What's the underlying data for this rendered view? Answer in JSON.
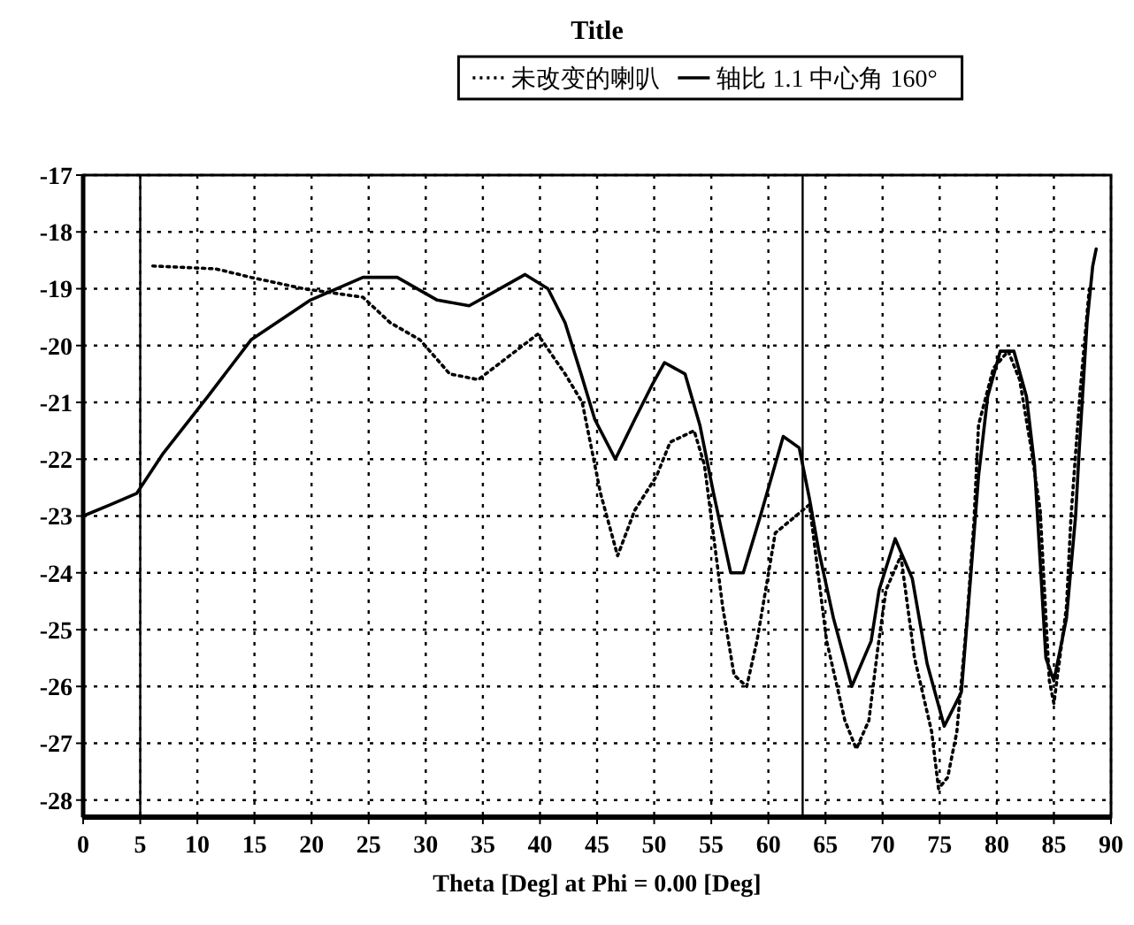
{
  "chart_data": {
    "type": "line",
    "title": "Title",
    "xlabel": "Theta [Deg] at Phi = 0.00 [Deg]",
    "xlim": [
      0,
      90
    ],
    "xticks": [
      0,
      5,
      10,
      15,
      20,
      25,
      30,
      35,
      40,
      45,
      50,
      55,
      60,
      65,
      70,
      75,
      80,
      85,
      90
    ],
    "ylim": [
      -28.3,
      -17
    ],
    "yticks": [
      -17,
      -18,
      -19,
      -20,
      -21,
      -22,
      -23,
      -24,
      -25,
      -26,
      -27,
      -28
    ],
    "grid": true,
    "legend": "top",
    "ref_lines": [
      {
        "axis": "x",
        "value": 5,
        "color": "#000000"
      },
      {
        "axis": "x",
        "value": 63,
        "color": "#000000"
      }
    ],
    "series": [
      {
        "name": "未改变的喇叭",
        "color": "#000000",
        "line_style": "dotted",
        "x": [
          6.1,
          11.6,
          14.7,
          19.3,
          24.5,
          26.9,
          29.5,
          32.1,
          34.6,
          37.2,
          39.8,
          42.2,
          43.7,
          45.3,
          46.8,
          48.3,
          50.2,
          51.4,
          53.5,
          54.4,
          56,
          57,
          58.1,
          59,
          60.1,
          60.6,
          63.6,
          65.1,
          66.7,
          67.7,
          68.8,
          69.6,
          70.3,
          71.6,
          72.8,
          74.3,
          74.9,
          75.7,
          76.5,
          77.4,
          78,
          78.4,
          79.7,
          81,
          82,
          83,
          83.8,
          84.6,
          85,
          86.1,
          86.5,
          87.3,
          88.1
        ],
        "values": [
          -18.6,
          -18.65,
          -18.8,
          -19.0,
          -19.15,
          -19.6,
          -19.9,
          -20.5,
          -20.6,
          -20.2,
          -19.8,
          -20.5,
          -21.0,
          -22.6,
          -23.7,
          -22.9,
          -22.3,
          -21.7,
          -21.5,
          -22.1,
          -24.6,
          -25.8,
          -26.0,
          -25.2,
          -23.9,
          -23.3,
          -22.8,
          -25.2,
          -26.6,
          -27.1,
          -26.6,
          -25.3,
          -24.3,
          -23.7,
          -25.5,
          -26.8,
          -27.8,
          -27.6,
          -26.8,
          -24.8,
          -23.1,
          -21.4,
          -20.4,
          -20.1,
          -20.6,
          -21.8,
          -22.9,
          -25.9,
          -26.3,
          -24.6,
          -23.0,
          -20.8,
          -19.0
        ]
      },
      {
        "name": "轴比 1.1 中心角 160°",
        "color": "#000000",
        "line_style": "solid",
        "x": [
          0,
          2.4,
          4.7,
          7.0,
          10.9,
          14.7,
          19.9,
          24.5,
          27.5,
          31,
          33.8,
          35.6,
          38.7,
          40.7,
          42.2,
          43.6,
          44.8,
          46.6,
          48.3,
          49.8,
          50.9,
          52.7,
          54,
          55.2,
          56.7,
          57.8,
          59.3,
          61.3,
          62.7,
          63.6,
          64.4,
          65.7,
          67.3,
          69,
          69.7,
          71.1,
          72.6,
          73.9,
          75.4,
          76.9,
          77.7,
          78.4,
          79.2,
          80.3,
          81.5,
          82.6,
          83.3,
          84.3,
          85,
          86.1,
          86.9,
          87.2,
          87.9,
          88.4,
          88.7
        ],
        "values": [
          -23.0,
          -22.8,
          -22.6,
          -21.9,
          -20.9,
          -19.9,
          -19.2,
          -18.8,
          -18.8,
          -19.2,
          -19.3,
          -19.1,
          -18.75,
          -19.0,
          -19.6,
          -20.5,
          -21.3,
          -22.0,
          -21.3,
          -20.7,
          -20.3,
          -20.5,
          -21.4,
          -22.6,
          -24.0,
          -24.0,
          -23.0,
          -21.6,
          -21.8,
          -22.7,
          -23.6,
          -24.8,
          -26.0,
          -25.2,
          -24.3,
          -23.4,
          -24.1,
          -25.6,
          -26.7,
          -26.1,
          -24.1,
          -22.3,
          -20.9,
          -20.1,
          -20.1,
          -20.9,
          -22.1,
          -25.5,
          -25.9,
          -24.8,
          -23.0,
          -21.9,
          -19.6,
          -18.6,
          -18.3
        ]
      }
    ]
  }
}
